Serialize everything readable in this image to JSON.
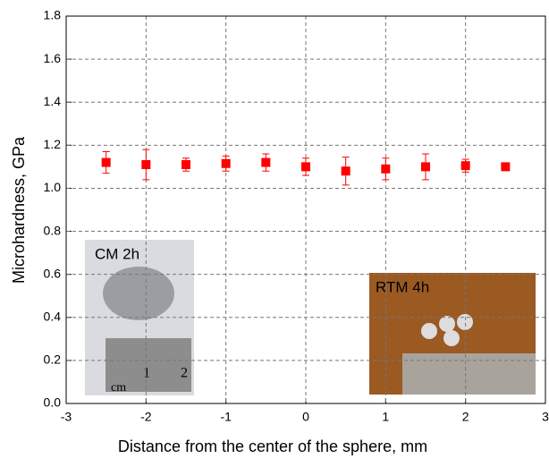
{
  "chart_data": {
    "type": "scatter",
    "x_label": "Distance from the center of the sphere, mm",
    "y_label": "Microhardness, GPa",
    "x": [
      -2.5,
      -2,
      -1.5,
      -1,
      -0.5,
      0,
      0.5,
      1,
      1.5,
      2,
      2.5
    ],
    "series": [
      {
        "color": "#ff0000",
        "values": [
          1.12,
          1.11,
          1.11,
          1.115,
          1.12,
          1.1,
          1.08,
          1.09,
          1.1,
          1.105,
          1.1
        ],
        "errors": [
          0.05,
          0.07,
          0.03,
          0.035,
          0.04,
          0.04,
          0.065,
          0.05,
          0.06,
          0.03,
          0.01
        ]
      }
    ],
    "xlim": [
      -3,
      3
    ],
    "xticks": [
      -3,
      -2,
      -1,
      0,
      1,
      2,
      3
    ],
    "ylim": [
      0,
      1.8
    ],
    "yticks": [
      {
        "value": 0,
        "label": "0.0"
      },
      0.2,
      0.4,
      0.6,
      0.8,
      {
        "value": 1,
        "label": "1.0"
      },
      1.2,
      1.4,
      1.6,
      1.8
    ],
    "grid": true,
    "annotations": [
      "CM 2h",
      "RTM 4h",
      "cm",
      "1",
      "2"
    ]
  }
}
